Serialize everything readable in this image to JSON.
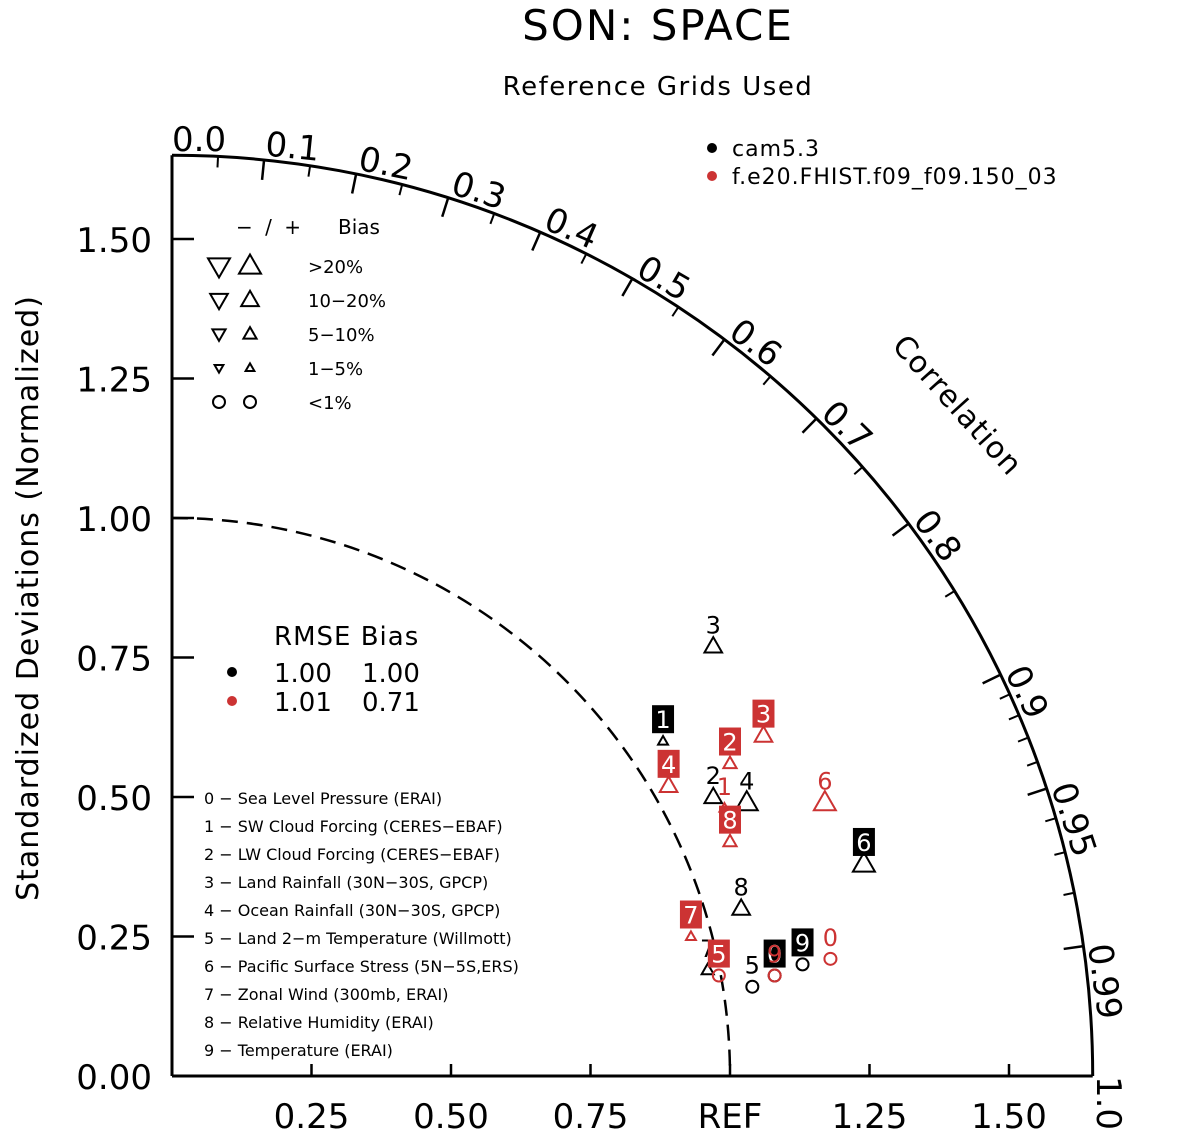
{
  "title": "SON: SPACE",
  "subtitle": "Reference Grids Used",
  "chart_data": {
    "type": "taylor",
    "ylabel": "Standardized Deviations (Normalized)",
    "xlabel_ref": "REF",
    "correlation_label": "Correlation",
    "xlim": [
      0,
      1.65
    ],
    "ylim": [
      0,
      1.65
    ],
    "x_ticks": [
      {
        "v": 0.25,
        "label": "0.25"
      },
      {
        "v": 0.5,
        "label": "0.50"
      },
      {
        "v": 0.75,
        "label": "0.75"
      },
      {
        "v": 1.0,
        "label": "REF"
      },
      {
        "v": 1.25,
        "label": "1.25"
      },
      {
        "v": 1.5,
        "label": "1.50"
      }
    ],
    "y_ticks": [
      {
        "v": 0.0,
        "label": "0.00"
      },
      {
        "v": 0.25,
        "label": "0.25"
      },
      {
        "v": 0.5,
        "label": "0.50"
      },
      {
        "v": 0.75,
        "label": "0.75"
      },
      {
        "v": 1.0,
        "label": "1.00"
      },
      {
        "v": 1.25,
        "label": "1.25"
      },
      {
        "v": 1.5,
        "label": "1.50"
      }
    ],
    "corr_labels": [
      {
        "r": 0.0,
        "label": "0.0"
      },
      {
        "r": 0.1,
        "label": "0.1"
      },
      {
        "r": 0.2,
        "label": "0.2"
      },
      {
        "r": 0.3,
        "label": "0.3"
      },
      {
        "r": 0.4,
        "label": "0.4"
      },
      {
        "r": 0.5,
        "label": "0.5"
      },
      {
        "r": 0.6,
        "label": "0.6"
      },
      {
        "r": 0.7,
        "label": "0.7"
      },
      {
        "r": 0.8,
        "label": "0.8"
      },
      {
        "r": 0.9,
        "label": "0.9"
      },
      {
        "r": 0.95,
        "label": "0.95"
      },
      {
        "r": 0.99,
        "label": "0.99"
      },
      {
        "r": 1.0,
        "label": "1.0"
      }
    ],
    "corr_major": [
      0.1,
      0.2,
      0.3,
      0.4,
      0.5,
      0.6,
      0.7,
      0.8,
      0.9,
      0.95,
      0.99
    ],
    "corr_minor": [
      0.05,
      0.15,
      0.25,
      0.35,
      0.45,
      0.55,
      0.65,
      0.75,
      0.85,
      0.91,
      0.92,
      0.93,
      0.94,
      0.96,
      0.97,
      0.98
    ],
    "series": [
      {
        "name": "cam5.3",
        "color": "#000000",
        "points": [
          {
            "id": "0",
            "x": 1.08,
            "y": 0.18,
            "marker": "circle",
            "boxed": true
          },
          {
            "id": "1",
            "x": 0.88,
            "y": 0.6,
            "marker": "tri-up",
            "msize": 0.45,
            "boxed": true
          },
          {
            "id": "2",
            "x": 0.97,
            "y": 0.5,
            "marker": "tri-up",
            "msize": 0.8,
            "boxed": false
          },
          {
            "id": "3",
            "x": 0.97,
            "y": 0.77,
            "marker": "tri-up",
            "msize": 0.8,
            "boxed": false
          },
          {
            "id": "4",
            "x": 1.03,
            "y": 0.49,
            "marker": "tri-up",
            "msize": 1.0,
            "boxed": false
          },
          {
            "id": "5",
            "x": 1.04,
            "y": 0.16,
            "marker": "circle",
            "boxed": false
          },
          {
            "id": "6",
            "x": 1.24,
            "y": 0.38,
            "marker": "tri-up",
            "msize": 1.0,
            "boxed": true
          },
          {
            "id": "7",
            "x": 0.96,
            "y": 0.19,
            "marker": "tri-up",
            "msize": 0.55,
            "boxed": false
          },
          {
            "id": "8",
            "x": 1.02,
            "y": 0.3,
            "marker": "tri-up",
            "msize": 0.8,
            "boxed": false
          },
          {
            "id": "9",
            "x": 1.13,
            "y": 0.2,
            "marker": "circle",
            "boxed": true
          }
        ]
      },
      {
        "name": "f.e20.FHIST.f09_f09.150_03",
        "color": "#cc3333",
        "points": [
          {
            "id": "0",
            "x": 1.18,
            "y": 0.21,
            "marker": "circle",
            "boxed": false
          },
          {
            "id": "1",
            "x": 0.99,
            "y": 0.48,
            "marker": "tri-up",
            "msize": 0.45,
            "boxed": false
          },
          {
            "id": "2",
            "x": 1.0,
            "y": 0.56,
            "marker": "tri-up",
            "msize": 0.6,
            "boxed": true
          },
          {
            "id": "3",
            "x": 1.06,
            "y": 0.61,
            "marker": "tri-up",
            "msize": 0.8,
            "boxed": true
          },
          {
            "id": "4",
            "x": 0.89,
            "y": 0.52,
            "marker": "tri-up",
            "msize": 0.8,
            "boxed": true
          },
          {
            "id": "5",
            "x": 0.98,
            "y": 0.18,
            "marker": "circle",
            "boxed": true
          },
          {
            "id": "6",
            "x": 1.17,
            "y": 0.49,
            "marker": "tri-up",
            "msize": 1.0,
            "boxed": false
          },
          {
            "id": "7",
            "x": 0.93,
            "y": 0.25,
            "marker": "tri-up",
            "msize": 0.45,
            "boxed": true
          },
          {
            "id": "8",
            "x": 1.0,
            "y": 0.42,
            "marker": "tri-up",
            "msize": 0.6,
            "boxed": true
          },
          {
            "id": "9",
            "x": 1.08,
            "y": 0.18,
            "marker": "circle",
            "boxed": false
          }
        ]
      }
    ]
  },
  "legend_series": [
    {
      "name": "cam5.3",
      "color": "#000000"
    },
    {
      "name": "f.e20.FHIST.f09_f09.150_03",
      "color": "#cc3333"
    }
  ],
  "bias_legend": {
    "header_signs": "− / +",
    "header_label": "Bias",
    "rows": [
      {
        "label": ">20%",
        "marker": "tri",
        "size": 1.0
      },
      {
        "label": "10−20%",
        "marker": "tri",
        "size": 0.8
      },
      {
        "label": "5−10%",
        "marker": "tri",
        "size": 0.6
      },
      {
        "label": "1−5%",
        "marker": "tri",
        "size": 0.4
      },
      {
        "label": "<1%",
        "marker": "circle",
        "size": 0.6
      }
    ]
  },
  "rmse_table": {
    "header": "RMSE Bias",
    "rows": [
      {
        "color": "#000000",
        "rmse": "1.00",
        "bias": "1.00"
      },
      {
        "color": "#cc3333",
        "rmse": "1.01",
        "bias": "0.71"
      }
    ]
  },
  "variables": [
    "0 − Sea Level Pressure (ERAI)",
    "1 − SW Cloud Forcing (CERES−EBAF)",
    "2 − LW Cloud Forcing (CERES−EBAF)",
    "3 − Land Rainfall (30N−30S, GPCP)",
    "4 − Ocean Rainfall (30N−30S, GPCP)",
    "5 − Land 2−m Temperature (Willmott)",
    "6 − Pacific Surface Stress (5N−5S,ERS)",
    "7 − Zonal Wind (300mb, ERAI)",
    "8 − Relative Humidity (ERAI)",
    "9 − Temperature (ERAI)"
  ]
}
